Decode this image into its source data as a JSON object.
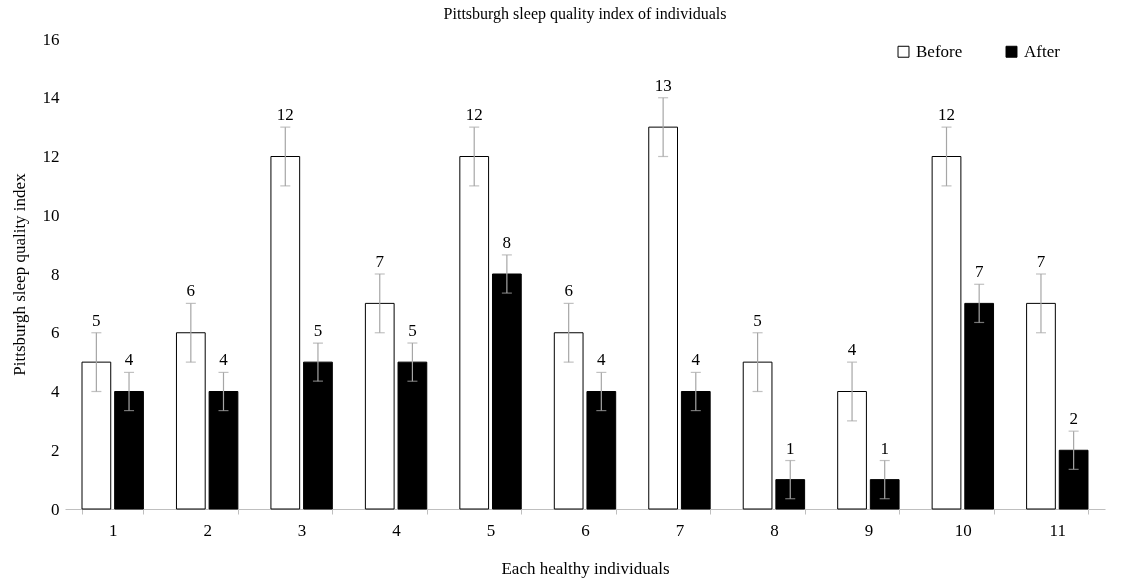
{
  "chart_data": {
    "type": "bar",
    "title": "Pittsburgh sleep quality index of individuals",
    "xlabel": "Each healthy individuals",
    "ylabel": "Pittsburgh sleep quality index",
    "categories": [
      "1",
      "2",
      "3",
      "4",
      "5",
      "6",
      "7",
      "8",
      "9",
      "10",
      "11"
    ],
    "series": [
      {
        "name": "Before",
        "color": "#ffffff",
        "values": [
          5,
          6,
          12,
          7,
          12,
          6,
          13,
          5,
          4,
          12,
          7
        ],
        "errors": [
          1,
          1,
          1,
          1,
          1,
          1,
          1,
          1,
          1,
          1,
          1
        ]
      },
      {
        "name": "After",
        "color": "#000000",
        "values": [
          4,
          4,
          5,
          5,
          8,
          4,
          4,
          1,
          1,
          7,
          2
        ],
        "errors": [
          0.65,
          0.65,
          0.65,
          0.65,
          0.65,
          0.65,
          0.65,
          0.65,
          0.65,
          0.65,
          0.65
        ]
      }
    ],
    "ylim": [
      0,
      16
    ],
    "yticks": [
      0,
      2,
      4,
      6,
      8,
      10,
      12,
      14,
      16
    ],
    "grid": false,
    "legend": "top right",
    "data_labels": true
  }
}
